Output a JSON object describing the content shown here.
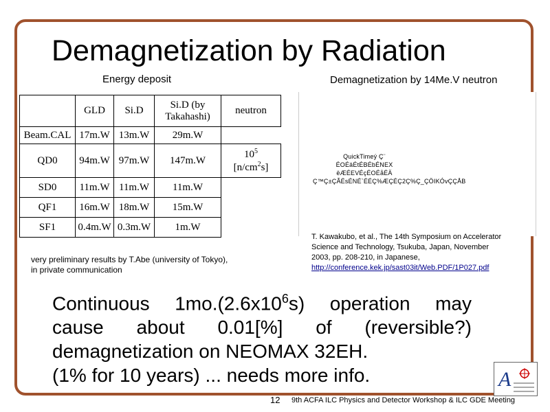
{
  "title": "Demagnetization by Radiation",
  "subtitle_left": "Energy deposit",
  "subtitle_right": "Demagnetization by 14Me.V neutron",
  "table": {
    "header": {
      "gld": "GLD",
      "sid": "Si.D",
      "sid_by": "Si.D (by",
      "sid_by_2": "Takahashi)",
      "neutron": "neutron"
    },
    "rows": [
      {
        "name": "Beam.CAL",
        "gld": "17m.W",
        "sid": "13m.W",
        "tak": "29m.W"
      },
      {
        "name": "QD0",
        "gld": "94m.W",
        "sid": "97m.W",
        "tak": "147m.W",
        "neutron_base": "10",
        "neutron_exp": "5",
        "neutron_unit_a": "[n/cm",
        "neutron_unit_exp": "2",
        "neutron_unit_b": "s]"
      },
      {
        "name": "SD0",
        "gld": "11m.W",
        "sid": "11m.W",
        "tak": "11m.W"
      },
      {
        "name": "QF1",
        "gld": "16m.W",
        "sid": "18m.W",
        "tak": "15m.W"
      },
      {
        "name": "SF1",
        "gld": "0.4m.W",
        "sid": "0.3m.W",
        "tak": "1m.W"
      }
    ]
  },
  "quicktime": {
    "line1": "QuickTimeý Ç¨",
    "line2": "ÉOÉäÉtÉBÉbÉNEX ëÆÉEVÉçÉOÉåÉÄ",
    "line3": "Ç™Ç±ÇÃÉsÉNÉ`ÉÉÇ%ÆÇÉÇ2Ç%Ç_ÇÖIKÓvÇÇÅB"
  },
  "note": {
    "line1": "very preliminary results by T.Abe (university of Tokyo),",
    "line2": "in private communication"
  },
  "reference": {
    "line1": "T. Kawakubo, et al., The 14th Symposium on Accelerator",
    "line2": "Science and Technology, Tsukuba, Japan, November",
    "line3": "2003, pp. 208-210, in Japanese,",
    "link": "http://conference.kek.jp/sast03it/Web.PDF/1P027.pdf"
  },
  "body": {
    "l1a": "Continuous 1mo.(2.6x10",
    "l1exp": "6",
    "l1b": "s) operation may",
    "l2": "cause about 0.01[%] of (reversible?)",
    "l3": "demagnetization on NEOMAX 32EH.",
    "l4": "(1% for 10 years) ... needs more info."
  },
  "page_number": "12",
  "footer": "9th ACFA ILC Physics and Detector Workshop & ILC GDE Meeting",
  "colors": {
    "frame": "#a0522d",
    "link": "#00008b"
  }
}
